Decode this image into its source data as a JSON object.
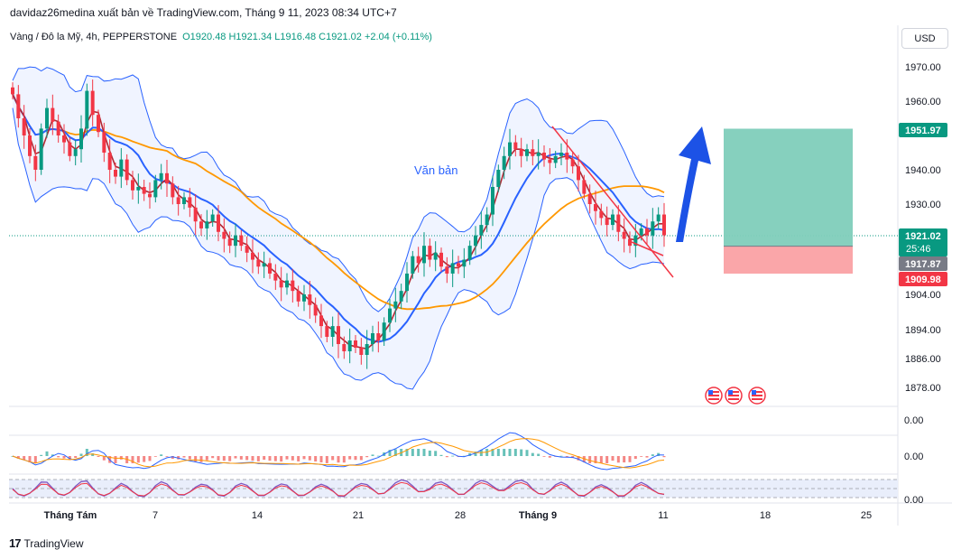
{
  "header": {
    "publisher_line": "davidaz26medina xuất bản về TradingView.com, Tháng 9 11, 2023 08:34 UTC+7"
  },
  "symbol": {
    "name": "Vàng / Đô la Mỹ, 4h, PEPPERSTONE",
    "ohlc": "O1920.48  H1921.34  L1916.48  C1921.02  +2.04 (+0.11%)"
  },
  "currency_button": "USD",
  "footer": {
    "logo_mark": "17",
    "logo_text": "TradingView"
  },
  "chart_data": {
    "type": "candlestick",
    "instrument": "Vàng / Đô la Mỹ",
    "timeframe": "4h",
    "broker": "PEPPERSTONE",
    "currency": "USD",
    "ohlc_last": {
      "open": 1920.48,
      "high": 1921.34,
      "low": 1916.48,
      "close": 1921.02,
      "change": 2.04,
      "change_pct": 0.11
    },
    "y_axis": {
      "ticks": [
        1970.0,
        1960.0,
        1940.0,
        1930.0,
        1904.0,
        1894.0,
        1886.0,
        1878.0
      ]
    },
    "x_axis": {
      "ticks": [
        "Tháng Tám",
        "7",
        "14",
        "21",
        "28",
        "Tháng 9",
        "11",
        "18",
        "25"
      ]
    },
    "price_labels": {
      "target": "1951.97",
      "current": "1921.02",
      "countdown": "25:46",
      "entry": "1917.87",
      "stop": "1909.98"
    },
    "annotation_text": "Văn bản",
    "indicator_labels": [
      "0.00",
      "0.00",
      "0.00"
    ],
    "close_series": [
      1962,
      1955,
      1950,
      1944,
      1940,
      1952,
      1958,
      1954,
      1950,
      1948,
      1944,
      1946,
      1952,
      1963,
      1956,
      1951,
      1945,
      1940,
      1938,
      1943,
      1937,
      1934,
      1935,
      1933,
      1932,
      1937,
      1939,
      1936,
      1932,
      1930,
      1932,
      1929,
      1925,
      1923,
      1925,
      1927,
      1922,
      1920,
      1918,
      1921,
      1918,
      1916,
      1914,
      1912,
      1913,
      1910,
      1908,
      1906,
      1908,
      1905,
      1902,
      1904,
      1901,
      1898,
      1895,
      1892,
      1895,
      1890,
      1888,
      1891,
      1889,
      1887,
      1890,
      1893,
      1891,
      1896,
      1900,
      1902,
      1905,
      1910,
      1915,
      1913,
      1918,
      1914,
      1916,
      1912,
      1910,
      1913,
      1912,
      1914,
      1918,
      1921,
      1924,
      1927,
      1935,
      1940,
      1944,
      1948,
      1946,
      1944,
      1946,
      1944,
      1945,
      1943,
      1942,
      1944,
      1945,
      1943,
      1941,
      1937,
      1933,
      1930,
      1928,
      1926,
      1924,
      1927,
      1922,
      1920,
      1918,
      1921,
      1923,
      1921,
      1925,
      1927,
      1921.02
    ],
    "trade_box": {
      "entry": 1917.87,
      "target": 1951.97,
      "stop": 1909.98
    }
  }
}
